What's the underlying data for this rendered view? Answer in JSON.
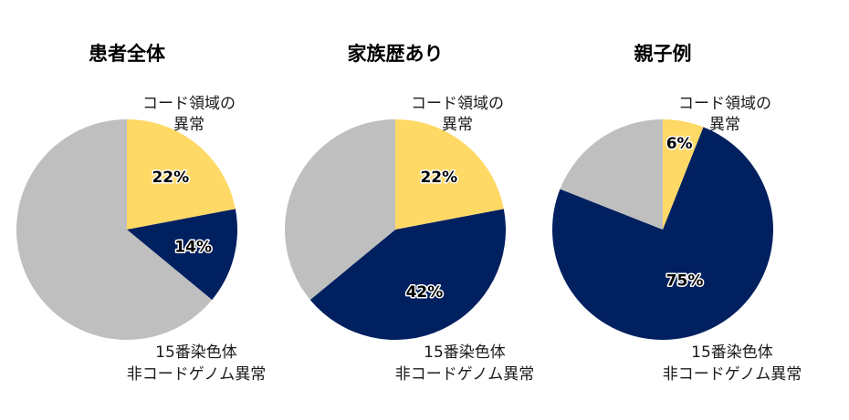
{
  "chart_data": [
    {
      "type": "pie",
      "title": "患者全体",
      "categories": [
        "コード領域の異常",
        "15番染色体非コードゲノム異常",
        ""
      ],
      "values": [
        22,
        14,
        64
      ],
      "labels": [
        "22%",
        "14%",
        ""
      ],
      "colors": [
        "#FFD966",
        "#002060",
        "#BFBFBF"
      ]
    },
    {
      "type": "pie",
      "title": "家族歴あり",
      "categories": [
        "コード領域の異常",
        "15番染色体非コードゲノム異常",
        ""
      ],
      "values": [
        22,
        42,
        36
      ],
      "labels": [
        "22%",
        "42%",
        ""
      ],
      "colors": [
        "#FFD966",
        "#002060",
        "#BFBFBF"
      ]
    },
    {
      "type": "pie",
      "title": "親子例",
      "categories": [
        "コード領域の異常",
        "15番染色体非コードゲノム異常",
        ""
      ],
      "values": [
        6,
        75,
        19
      ],
      "labels": [
        "6%",
        "75%",
        ""
      ],
      "colors": [
        "#FFD966",
        "#002060",
        "#BFBFBF"
      ]
    }
  ],
  "category_label_lines": {
    "coding": [
      "コード領域の",
      "異常"
    ],
    "noncoding": [
      "15番染色体",
      "非コードゲノム異常"
    ]
  }
}
